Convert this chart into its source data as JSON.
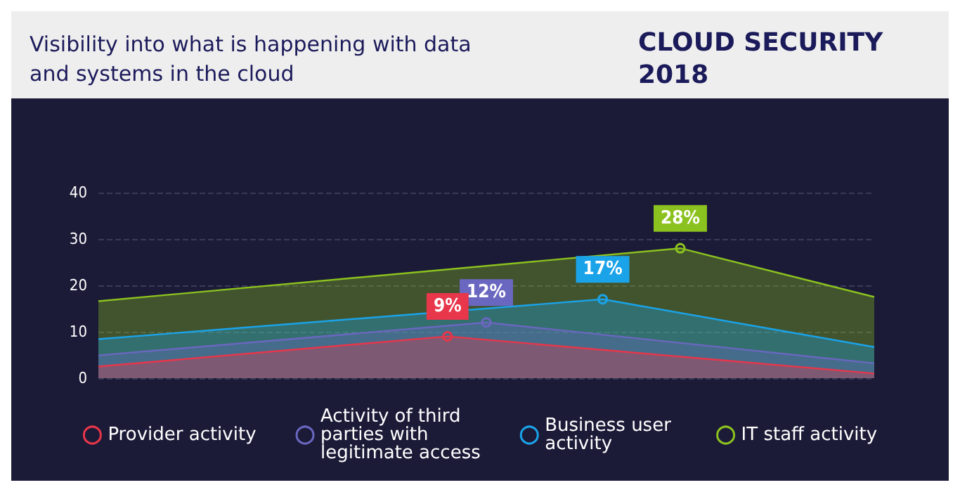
{
  "chart_data": {
    "type": "area",
    "title": "Visibility into what is happening with data and systems in the cloud",
    "subtitle": "CLOUD SECURITY 2018",
    "categories": [
      null,
      null,
      null,
      null,
      null,
      null,
      null,
      null,
      null,
      null,
      null,
      null,
      null,
      null,
      null,
      null,
      null,
      null,
      null,
      null,
      null
    ],
    "ylim": [
      0,
      40
    ],
    "yticks": [
      0,
      10,
      20,
      30,
      40
    ],
    "tick_labels": "y",
    "grid": "y",
    "legend": "bottom",
    "series": [
      {
        "name": "IT staff activity",
        "color": "#8cc21f",
        "values": [
          16.6,
          null,
          null,
          null,
          null,
          null,
          null,
          null,
          null,
          null,
          null,
          null,
          null,
          null,
          null,
          28,
          null,
          null,
          null,
          null,
          17.5
        ],
        "value_labels": [
          null,
          null,
          null,
          null,
          null,
          null,
          null,
          null,
          null,
          null,
          null,
          null,
          null,
          null,
          null,
          "28%",
          null,
          null,
          null,
          null,
          null
        ]
      },
      {
        "name": "Business user activity",
        "color": "#1aa3e8",
        "values": [
          8.4,
          null,
          null,
          null,
          null,
          null,
          null,
          null,
          null,
          null,
          null,
          null,
          null,
          17,
          null,
          null,
          null,
          null,
          null,
          null,
          6.7
        ],
        "value_labels": [
          null,
          null,
          null,
          null,
          null,
          null,
          null,
          null,
          null,
          null,
          null,
          null,
          null,
          "17%",
          null,
          null,
          null,
          null,
          null,
          null,
          null
        ]
      },
      {
        "name": "Activity of third parties with legitimate access",
        "color": "#6a67c0",
        "values": [
          4.9,
          null,
          null,
          null,
          null,
          null,
          null,
          null,
          null,
          null,
          12,
          null,
          null,
          null,
          null,
          null,
          null,
          null,
          null,
          null,
          3.2
        ],
        "value_labels": [
          null,
          null,
          null,
          null,
          null,
          null,
          null,
          null,
          null,
          null,
          "12%",
          null,
          null,
          null,
          null,
          null,
          null,
          null,
          null,
          null,
          null
        ]
      },
      {
        "name": "Provider activity",
        "color": "#e8364a",
        "values": [
          2.5,
          null,
          null,
          null,
          null,
          null,
          null,
          null,
          null,
          9,
          null,
          null,
          null,
          null,
          null,
          null,
          null,
          null,
          null,
          null,
          1
        ],
        "value_labels": [
          null,
          null,
          null,
          null,
          null,
          null,
          null,
          null,
          null,
          "9%",
          null,
          null,
          null,
          null,
          null,
          null,
          null,
          null,
          null,
          null,
          null
        ]
      }
    ]
  }
}
